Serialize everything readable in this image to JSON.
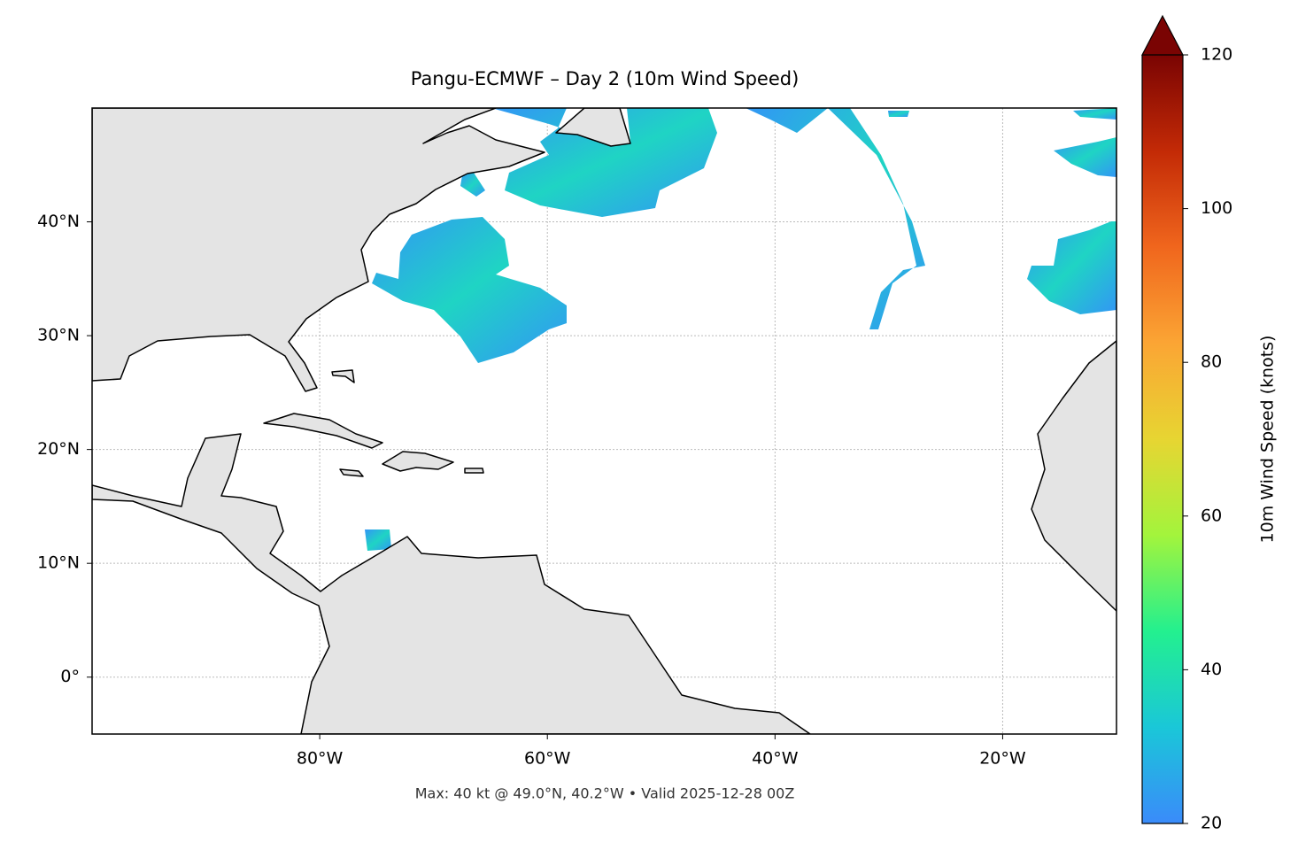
{
  "chart_data": {
    "type": "map",
    "title": "Pangu-ECMWF – Day 2 (10m Wind Speed)",
    "xlim": [
      -100,
      -10
    ],
    "ylim": [
      -5,
      50
    ],
    "xticks": [
      {
        "value": -80,
        "label": "80°W"
      },
      {
        "value": -60,
        "label": "60°W"
      },
      {
        "value": -40,
        "label": "40°W"
      },
      {
        "value": -20,
        "label": "20°W"
      }
    ],
    "yticks": [
      {
        "value": 0,
        "label": "0°"
      },
      {
        "value": 10,
        "label": "10°N"
      },
      {
        "value": 20,
        "label": "20°N"
      },
      {
        "value": 30,
        "label": "30°N"
      },
      {
        "value": 40,
        "label": "40°N"
      }
    ],
    "grid": true,
    "colorbar": {
      "label": "10m Wind Speed (knots)",
      "lim": [
        20,
        120
      ],
      "ticks": [
        20,
        40,
        60,
        80,
        100,
        120
      ],
      "colors": [
        "#3a8bfa",
        "#1ac7d8",
        "#23f08f",
        "#a3f43c",
        "#e7d532",
        "#fba534",
        "#f0661d",
        "#c32a06",
        "#7a0403"
      ]
    },
    "note": "Max: 40 kt @ 49.0°N, 40.2°W • Valid 2025-12-28 00Z"
  }
}
